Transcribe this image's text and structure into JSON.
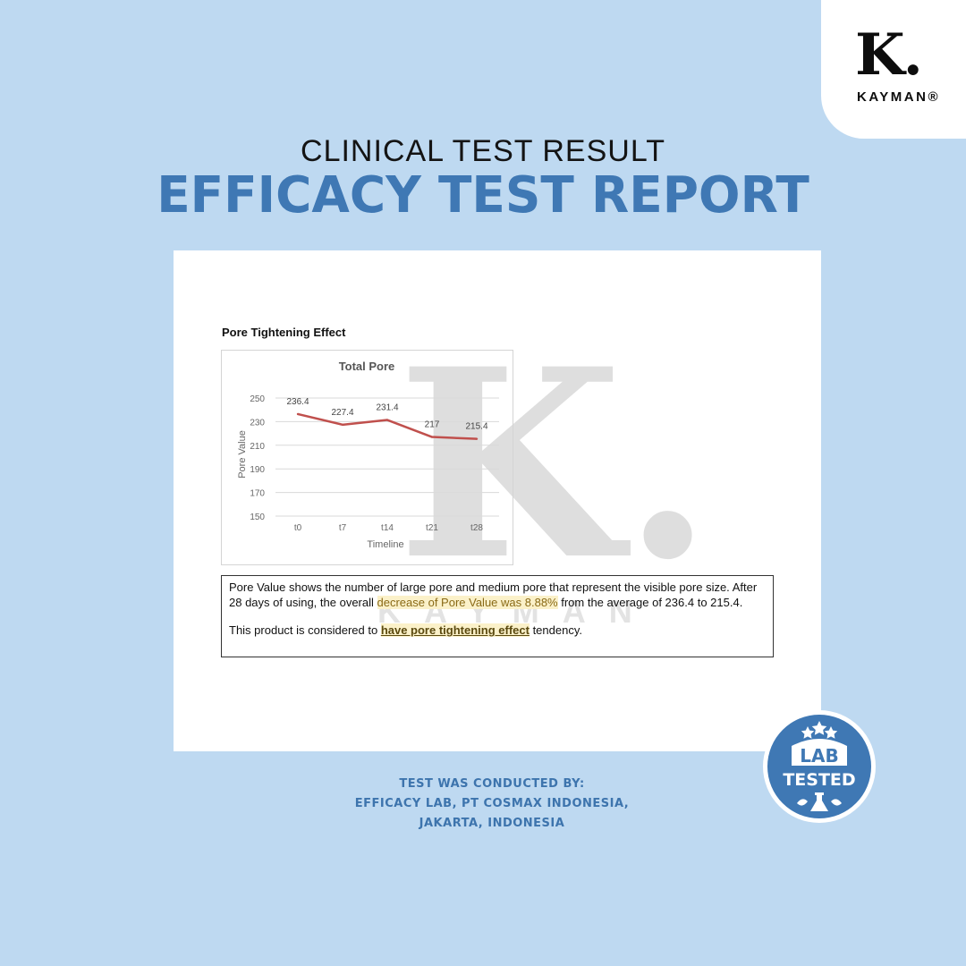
{
  "brand": {
    "logo_letter": "K.",
    "logo_word": "KAYMAN®"
  },
  "header": {
    "subtitle": "CLINICAL TEST RESULT",
    "title": "EFFICACY TEST REPORT"
  },
  "document": {
    "section_title": "Pore Tightening Effect",
    "watermark_letter": "K.",
    "watermark_word": "KAYMAN",
    "paragraph1_a": "Pore Value shows the number of large pore and medium pore that represent the visible pore size. After 28 days of using, the overall ",
    "paragraph1_highlight": "decrease of Pore Value was 8.88%",
    "paragraph1_b": " from the average of 236.4 to 215.4.",
    "paragraph2_a": "This product is considered to ",
    "paragraph2_highlight": "have pore tightening effect",
    "paragraph2_b": " tendency."
  },
  "chart_data": {
    "type": "line",
    "title": "Total Pore",
    "xlabel": "Timeline",
    "ylabel": "Pore Value",
    "categories": [
      "t0",
      "t7",
      "t14",
      "t21",
      "t28"
    ],
    "series": [
      {
        "values": [
          236.4,
          227.4,
          231.4,
          217,
          215.4
        ],
        "labels": [
          "236.4",
          "227.4",
          "231.4",
          "217",
          "215.4"
        ],
        "color": "#c0504d"
      }
    ],
    "yticks": [
      150,
      170,
      190,
      210,
      230,
      250
    ],
    "ylim": [
      150,
      250
    ],
    "grid": true
  },
  "footer": {
    "credit_line1": "TEST WAS CONDUCTED BY:",
    "credit_line2": "EFFICACY LAB, PT COSMAX INDONESIA,",
    "credit_line3": "JAKARTA, INDONESIA"
  },
  "badge": {
    "line1": "LAB",
    "line2": "TESTED",
    "color": "#3f78b4"
  }
}
